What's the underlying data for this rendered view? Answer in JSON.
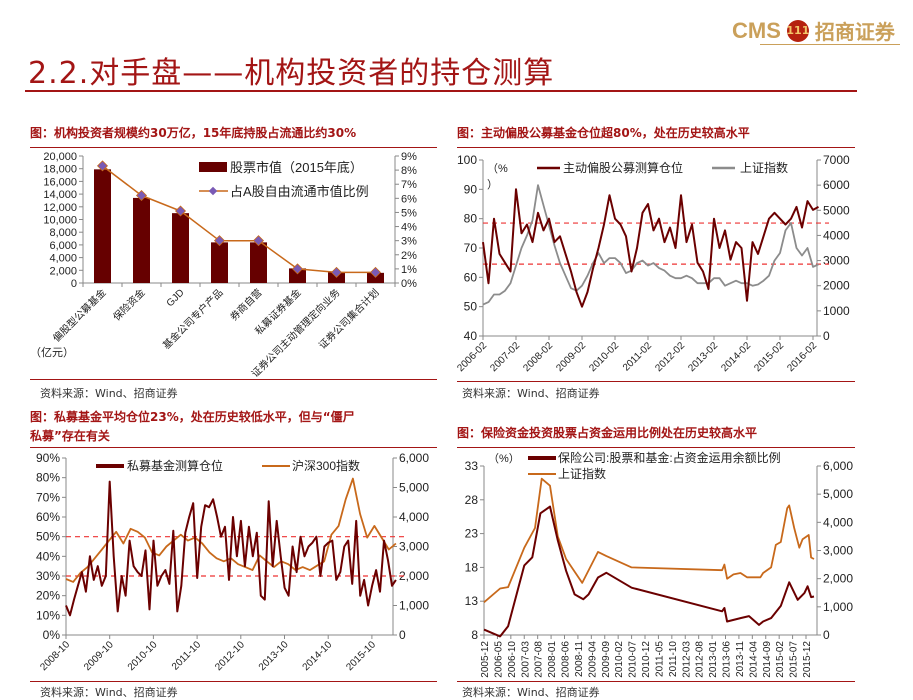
{
  "header": {
    "title": "2.2.对手盘——机构投资者的持仓测算",
    "logo_text": "CMS",
    "logo_badge": "111",
    "logo_cn": "招商证券"
  },
  "chart_data": [
    {
      "type": "bar",
      "title": "图：机构投资者规模约30万亿，15年底持股占流通比约30%",
      "source": "资料来源：Wind、招商证券",
      "unit_label": "（亿元）",
      "categories": [
        "偏股型公募基金",
        "保险资金",
        "GJD",
        "基金公司专户产品",
        "券商自营",
        "私募证券基金",
        "证券公司主动管理定向业务",
        "证券公司集合计划"
      ],
      "series": [
        {
          "name": "股票市值（2015年底）",
          "axis": "left",
          "type": "bar",
          "color": "#660000",
          "values": [
            17900,
            13400,
            11000,
            6400,
            6400,
            2300,
            1700,
            1600
          ]
        },
        {
          "name": "占A股自由流通市值比例",
          "axis": "right",
          "type": "line",
          "color": "#c8691b",
          "marker_color": "#7a5ab5",
          "values": [
            8.3,
            6.2,
            5.1,
            3.0,
            3.0,
            1.0,
            0.75,
            0.75
          ]
        }
      ],
      "y_left": {
        "min": 0,
        "max": 20000,
        "step": 2000
      },
      "y_right": {
        "min": 0,
        "max": 9,
        "step": 1,
        "suffix": "%"
      }
    },
    {
      "type": "line",
      "title": "图：主动偏股公募基金仓位超80%，处在历史较高水平",
      "source": "资料来源：Wind、招商证券",
      "unit_label": "（%",
      "unit_label2": "）",
      "x_ticks": [
        "2006-02",
        "2007-02",
        "2008-02",
        "2009-02",
        "2010-02",
        "2011-02",
        "2012-02",
        "2013-02",
        "2014-02",
        "2015-02",
        "2016-02"
      ],
      "x_range": [
        2006.083,
        2016.083
      ],
      "reference_lines": [
        78.5,
        64.5
      ],
      "series": [
        {
          "name": "主动偏股公募测算仓位",
          "axis": "left",
          "color": "#6b0000",
          "x_start": 2006.083,
          "x_end": 2016.25,
          "values": [
            72,
            58,
            80,
            68,
            65,
            62,
            90,
            75,
            78,
            72,
            82,
            76,
            80,
            72,
            74,
            68,
            62,
            55,
            50,
            55,
            63,
            70,
            78,
            88,
            80,
            78,
            74,
            62,
            70,
            82,
            85,
            76,
            80,
            72,
            77,
            70,
            88,
            72,
            78,
            65,
            62,
            56,
            80,
            70,
            76,
            66,
            72,
            70,
            52,
            72,
            68,
            74,
            80,
            82,
            80,
            78,
            80,
            84,
            77,
            86,
            83,
            84
          ]
        },
        {
          "name": "上证指数",
          "axis": "right",
          "color": "#8c8c8c",
          "x_start": 2006.083,
          "x_end": 2016.25,
          "values": [
            1250,
            1350,
            1650,
            1650,
            1800,
            2100,
            2800,
            3500,
            4000,
            4600,
            6000,
            5200,
            4400,
            3600,
            2900,
            2400,
            1900,
            1800,
            2000,
            2400,
            2900,
            3300,
            2900,
            3100,
            3100,
            2900,
            2500,
            2600,
            2900,
            3000,
            2800,
            2900,
            2700,
            2600,
            2400,
            2300,
            2300,
            2400,
            2300,
            2100,
            2100,
            2100,
            2300,
            2300,
            2000,
            2100,
            2200,
            2100,
            2100,
            2000,
            2050,
            2200,
            2400,
            3000,
            3300,
            4200,
            4500,
            3500,
            3200,
            3500,
            2750,
            2850
          ]
        }
      ],
      "y_left": {
        "min": 40,
        "max": 100,
        "step": 10
      },
      "y_right": {
        "min": 0,
        "max": 7000,
        "step": 1000
      }
    },
    {
      "type": "line",
      "title": "图：私募基金平均仓位23%，处在历史较低水平，但与“僵尸",
      "title2": "私募”存在有关",
      "source": "资料来源：Wind、招商证券",
      "x_ticks": [
        "2008-10",
        "2009-10",
        "2010-10",
        "2011-10",
        "2012-10",
        "2013-10",
        "2014-10",
        "2015-10"
      ],
      "x_range": [
        2008.75,
        2015.75
      ],
      "reference_lines": [
        50,
        30
      ],
      "series": [
        {
          "name": "私募基金测算仓位",
          "axis": "left",
          "color": "#6b0000",
          "x_start": 2008.75,
          "x_end": 2016.3,
          "values": [
            15,
            10,
            18,
            25,
            32,
            22,
            40,
            28,
            35,
            25,
            30,
            78,
            40,
            12,
            30,
            20,
            48,
            35,
            32,
            30,
            43,
            13,
            48,
            25,
            30,
            33,
            26,
            53,
            12,
            25,
            52,
            60,
            67,
            29,
            55,
            66,
            65,
            69,
            60,
            50,
            55,
            28,
            60,
            40,
            58,
            35,
            55,
            40,
            52,
            20,
            18,
            68,
            35,
            58,
            40,
            24,
            20,
            45,
            32,
            50,
            40,
            45,
            47,
            50,
            30,
            45,
            47,
            48,
            28,
            32,
            45,
            48,
            26,
            58,
            20,
            28,
            15,
            25,
            33,
            22,
            48,
            38,
            25,
            28
          ]
        },
        {
          "name": "沪深300指数",
          "axis": "right",
          "color": "#c8691b",
          "x_start": 2008.75,
          "x_end": 2016.3,
          "values": [
            1900,
            1800,
            2100,
            2300,
            2600,
            2900,
            3200,
            3500,
            3100,
            3600,
            3500,
            3300,
            2800,
            2700,
            3000,
            3200,
            3400,
            3200,
            3300,
            3100,
            2800,
            2600,
            2500,
            2600,
            2400,
            2300,
            2200,
            2700,
            2500,
            2300,
            2500,
            2400,
            2200,
            2300,
            2200,
            2350,
            2500,
            3400,
            3700,
            4600,
            5300,
            4100,
            3300,
            3700,
            3300,
            2900,
            3100
          ]
        }
      ],
      "y_left": {
        "min": 0,
        "max": 90,
        "step": 10,
        "suffix": "%"
      },
      "y_right": {
        "min": 0,
        "max": 6000,
        "step": 1000
      }
    },
    {
      "type": "line",
      "title": "图：保险资金投资股票占资金运用比例处在历史较高水平",
      "source": "资料来源：Wind、招商证券",
      "unit_label": "（%）",
      "x_ticks": [
        "2005-12",
        "2006-05",
        "2006-10",
        "2007-03",
        "2007-08",
        "2008-01",
        "2008-06",
        "2008-11",
        "2009-04",
        "2009-09",
        "2010-02",
        "2010-07",
        "2010-12",
        "2011-05",
        "2011-10",
        "2012-03",
        "2012-08",
        "2013-01",
        "2013-06",
        "2013-11",
        "2014-04",
        "2014-09",
        "2015-02",
        "2015-07",
        "2015-12"
      ],
      "x_unit": "months since 2005-12",
      "series": [
        {
          "name": "保险公司:股票和基金:占资金运用余额比例",
          "axis": "left",
          "color": "#6b0000",
          "points": [
            [
              0,
              8.8
            ],
            [
              6,
              7.8
            ],
            [
              9,
              9.3
            ],
            [
              15,
              18.3
            ],
            [
              18,
              19.5
            ],
            [
              21,
              26
            ],
            [
              24.6,
              27
            ],
            [
              27.5,
              22
            ],
            [
              30.6,
              17.5
            ],
            [
              33.75,
              14
            ],
            [
              37,
              13.3
            ],
            [
              39,
              14
            ],
            [
              42.5,
              16.5
            ],
            [
              45.6,
              17.2
            ],
            [
              55,
              15
            ],
            [
              88.75,
              11.5
            ],
            [
              89.6,
              12
            ],
            [
              90.6,
              10
            ],
            [
              95.6,
              10.5
            ],
            [
              98.75,
              10.8
            ],
            [
              102.5,
              9.5
            ],
            [
              104,
              10
            ],
            [
              107,
              10.5
            ],
            [
              110.6,
              12.3
            ],
            [
              113.75,
              15.8
            ],
            [
              116.9,
              13.2
            ],
            [
              119.4,
              14.2
            ],
            [
              120.6,
              15.2
            ],
            [
              121.9,
              13.6
            ],
            [
              123,
              13.7
            ]
          ]
        },
        {
          "name": "上证指数",
          "axis": "right",
          "color": "#c8691b",
          "points": [
            [
              0,
              1160
            ],
            [
              6,
              1650
            ],
            [
              9,
              1700
            ],
            [
              15,
              3100
            ],
            [
              19,
              3800
            ],
            [
              21.5,
              5550
            ],
            [
              24.6,
              5300
            ],
            [
              27.5,
              3500
            ],
            [
              30.6,
              2700
            ],
            [
              36.6,
              1850
            ],
            [
              42.5,
              2950
            ],
            [
              45.6,
              2800
            ],
            [
              55,
              2400
            ],
            [
              88.75,
              2300
            ],
            [
              89.6,
              2500
            ],
            [
              90.6,
              2000
            ],
            [
              93,
              2150
            ],
            [
              95.6,
              2200
            ],
            [
              98,
              2050
            ],
            [
              103,
              2050
            ],
            [
              104,
              2200
            ],
            [
              107,
              2400
            ],
            [
              108.75,
              3200
            ],
            [
              110.6,
              3300
            ],
            [
              113,
              4500
            ],
            [
              113.75,
              4600
            ],
            [
              115.6,
              3800
            ],
            [
              117.5,
              3100
            ],
            [
              118.75,
              3400
            ],
            [
              121,
              3550
            ],
            [
              121.9,
              2750
            ],
            [
              123,
              2700
            ]
          ]
        }
      ],
      "y_left": {
        "min": 8,
        "max": 33,
        "step": 5
      },
      "y_right": {
        "min": 0,
        "max": 6000,
        "step": 1000
      }
    }
  ]
}
